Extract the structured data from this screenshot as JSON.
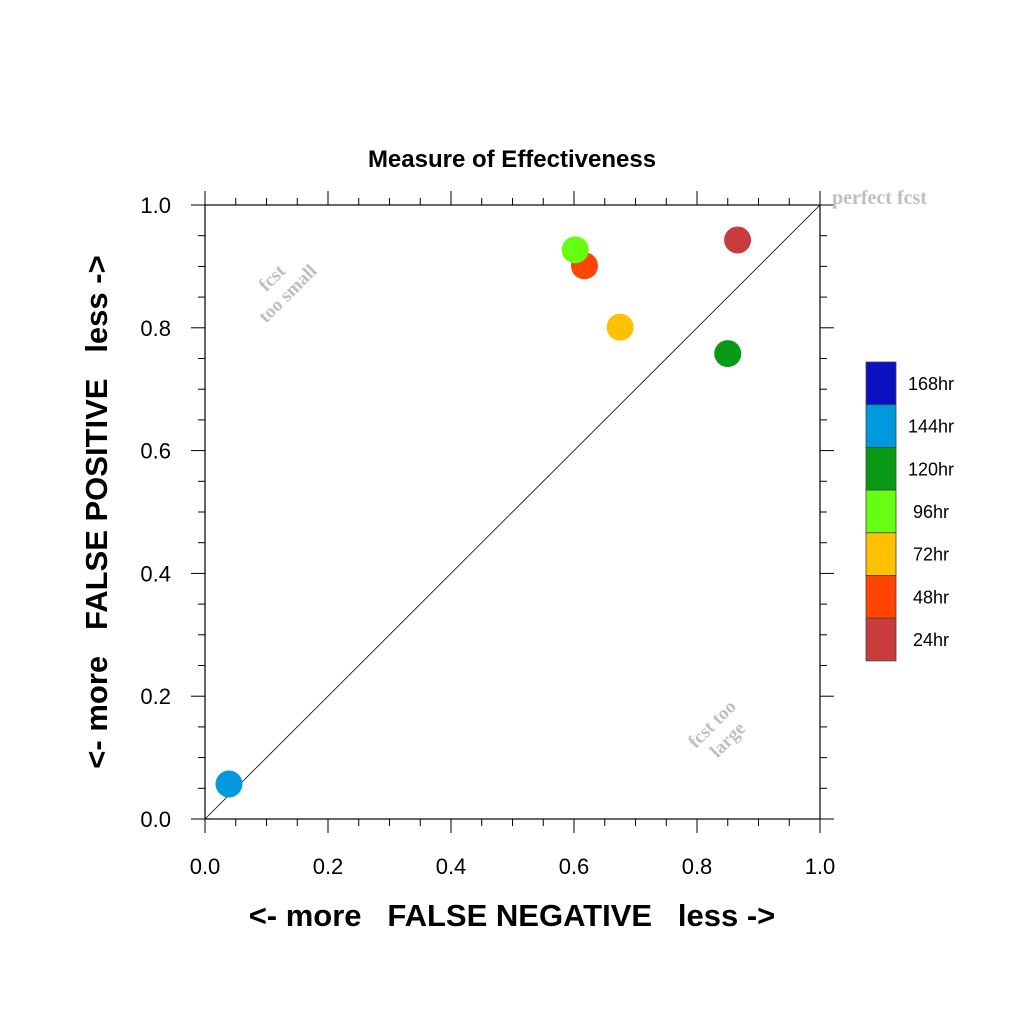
{
  "chart_data": {
    "type": "scatter",
    "title": "Measure of Effectiveness",
    "xlabel": "<- more   FALSE NEGATIVE   less ->",
    "ylabel": "<- more   FALSE POSITIVE   less ->",
    "xlim": [
      0.0,
      1.0
    ],
    "ylim": [
      0.0,
      1.0
    ],
    "x_ticks": [
      "0.0",
      "0.2",
      "0.4",
      "0.6",
      "0.8",
      "1.0"
    ],
    "y_ticks": [
      "0.0",
      "0.2",
      "0.4",
      "0.6",
      "0.8",
      "1.0"
    ],
    "grid": false,
    "diagonal_line": true,
    "annotations": {
      "perfect": "perfect fcst",
      "too_small_line1": "fcst",
      "too_small_line2": "too small",
      "too_large_line1": "fcst too",
      "too_large_line2": "large"
    },
    "points": [
      {
        "label": "24hr",
        "x": 0.866,
        "y": 0.943,
        "color": "#c83c3c"
      },
      {
        "label": "48hr",
        "x": 0.617,
        "y": 0.901,
        "color": "#ff4500"
      },
      {
        "label": "72hr",
        "x": 0.675,
        "y": 0.801,
        "color": "#ffc000"
      },
      {
        "label": "96hr",
        "x": 0.602,
        "y": 0.927,
        "color": "#66ff11"
      },
      {
        "label": "120hr",
        "x": 0.85,
        "y": 0.758,
        "color": "#089a14"
      },
      {
        "label": "144hr",
        "x": 0.039,
        "y": 0.057,
        "color": "#0099dd"
      }
    ],
    "legend": {
      "placement": "right",
      "entries": [
        {
          "label": "168hr",
          "color": "#0b11c0"
        },
        {
          "label": "144hr",
          "color": "#0099dd"
        },
        {
          "label": "120hr",
          "color": "#089a14"
        },
        {
          "label": "96hr",
          "color": "#66ff11"
        },
        {
          "label": "72hr",
          "color": "#ffc000"
        },
        {
          "label": "48hr",
          "color": "#ff4500"
        },
        {
          "label": "24hr",
          "color": "#c83c3c"
        }
      ]
    }
  }
}
